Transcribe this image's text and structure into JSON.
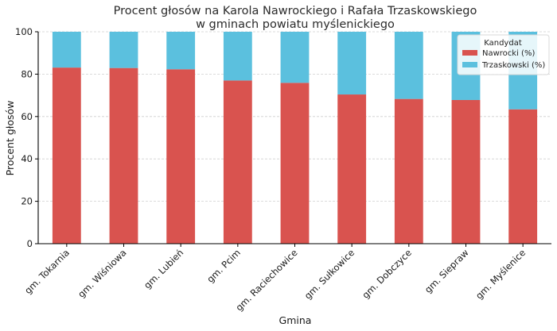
{
  "chart_data": {
    "type": "bar",
    "stacked": true,
    "title_lines": [
      "Procent głosów na Karola Nawrockiego i Rafała Trzaskowskiego",
      "w gminach powiatu myślenickiego"
    ],
    "xlabel": "Gmina",
    "ylabel": "Procent głosów",
    "ylim": [
      0,
      100
    ],
    "yticks": [
      0,
      20,
      40,
      60,
      80,
      100
    ],
    "categories": [
      "gm. Tokarnia",
      "gm. Wiśniowa",
      "gm. Lubień",
      "gm. Pcim",
      "gm. Raciechowice",
      "gm. Sułkowice",
      "gm. Dobczyce",
      "gm. Siepraw",
      "gm. Myślenice"
    ],
    "series": [
      {
        "name": "Nawrocki (%)",
        "color": "#d9534f",
        "values": [
          83.1,
          82.9,
          82.3,
          77.0,
          75.9,
          70.4,
          68.3,
          67.8,
          63.4
        ]
      },
      {
        "name": "Trzaskowski (%)",
        "color": "#5bc0de",
        "values": [
          16.9,
          17.1,
          17.7,
          23.0,
          24.1,
          29.6,
          31.7,
          32.2,
          36.6
        ]
      }
    ],
    "legend": {
      "title": "Kandydat",
      "position": "top-right"
    },
    "grid": true
  }
}
